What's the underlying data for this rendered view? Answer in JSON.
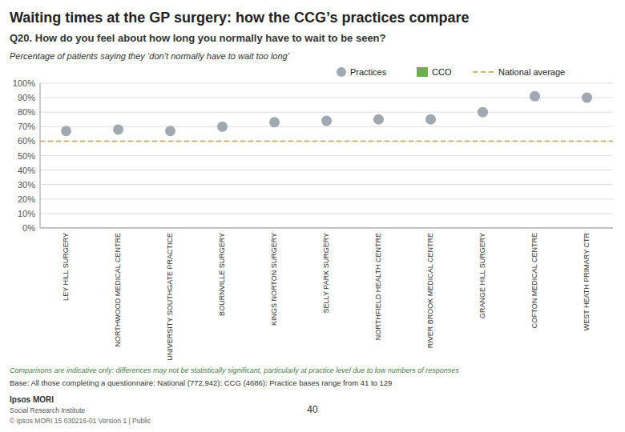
{
  "chart_data": {
    "type": "scatter",
    "title": "Waiting times at the GP surgery: how the CCG’s practices compare",
    "subtitle": "Q20. How do you feel about how long you normally have to wait to be seen?",
    "y_label": "Percentage of patients saying they ‘don’t normally have to wait too long’",
    "categories": [
      "LEY HILL SURGERY",
      "NORTHWOOD MEDICAL CENTRE",
      "UNIVERSITY SOUTHGATE PRACTICE",
      "BOURNVILLE SURGERY",
      "KINGS NORTON SURGERY",
      "SELLY PARK SURGERY",
      "NORTHFIELD HEALTH CENTRE",
      "RIVER BROOK MEDICAL CENTRE",
      "GRANGE HILL SURGERY",
      "COFTON MEDICAL CENTRE",
      "WEST HEATH PRIMARY CTR"
    ],
    "series": [
      {
        "name": "Practices",
        "type": "scatter",
        "marker": "circle",
        "color": "#a0a8b0",
        "values": [
          67,
          68,
          67,
          70,
          73,
          74,
          75,
          75,
          80,
          91,
          90
        ]
      }
    ],
    "national_average": {
      "name": "National average",
      "value": 60,
      "color": "#c8b870",
      "line_style": "dashed"
    },
    "ccg": {
      "name": "CCO",
      "color": "#6ab04c"
    },
    "ylim": [
      0,
      100
    ],
    "yticks": [
      {
        "value": 0,
        "label": "0%"
      },
      {
        "value": 10,
        "label": "10%"
      },
      {
        "value": 20,
        "label": "20%"
      },
      {
        "value": 30,
        "label": "30%"
      },
      {
        "value": 40,
        "label": "40%"
      },
      {
        "value": 50,
        "label": "50%"
      },
      {
        "value": 60,
        "label": "60%"
      },
      {
        "value": 70,
        "label": "70%"
      },
      {
        "value": 80,
        "label": "80%"
      },
      {
        "value": 90,
        "label": "90%"
      },
      {
        "value": 100,
        "label": "100%"
      }
    ],
    "grid": true,
    "legend": "top",
    "annotations": [
      "Comparisons are indicative only: differences may not be statistically significant, particularly at practice level due to low numbers of responses",
      "Base: All those completing a questionnaire: National (772,942): CCG (4686): Practice bases range from 41 to 129",
      "40",
      "Ipsos MORI",
      "Social Research Institute",
      "© Ipsos MORI   15 030216-01 Version 1 | Public"
    ]
  }
}
